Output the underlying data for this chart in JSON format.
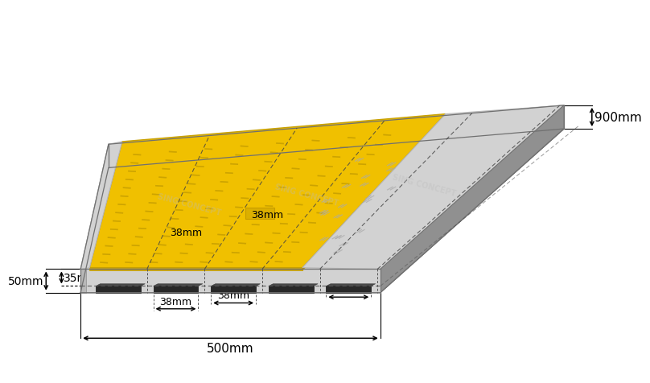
{
  "bg_color": "#ffffff",
  "gray_light": "#d2d2d2",
  "gray_mid": "#b8b8b8",
  "gray_dark": "#909090",
  "gray_darker": "#707070",
  "yellow": "#f0c000",
  "yellow_dark": "#c8a000",
  "yellow_shadow": "#a88000",
  "channel_dark": "#282828",
  "channel_mid": "#484848",
  "dim_color": "#000000",
  "num_channels": 5,
  "dims": {
    "w": "500mm",
    "h": "900mm",
    "ch": "38mm",
    "total_h": "50mm",
    "lid_h": "35mm"
  }
}
